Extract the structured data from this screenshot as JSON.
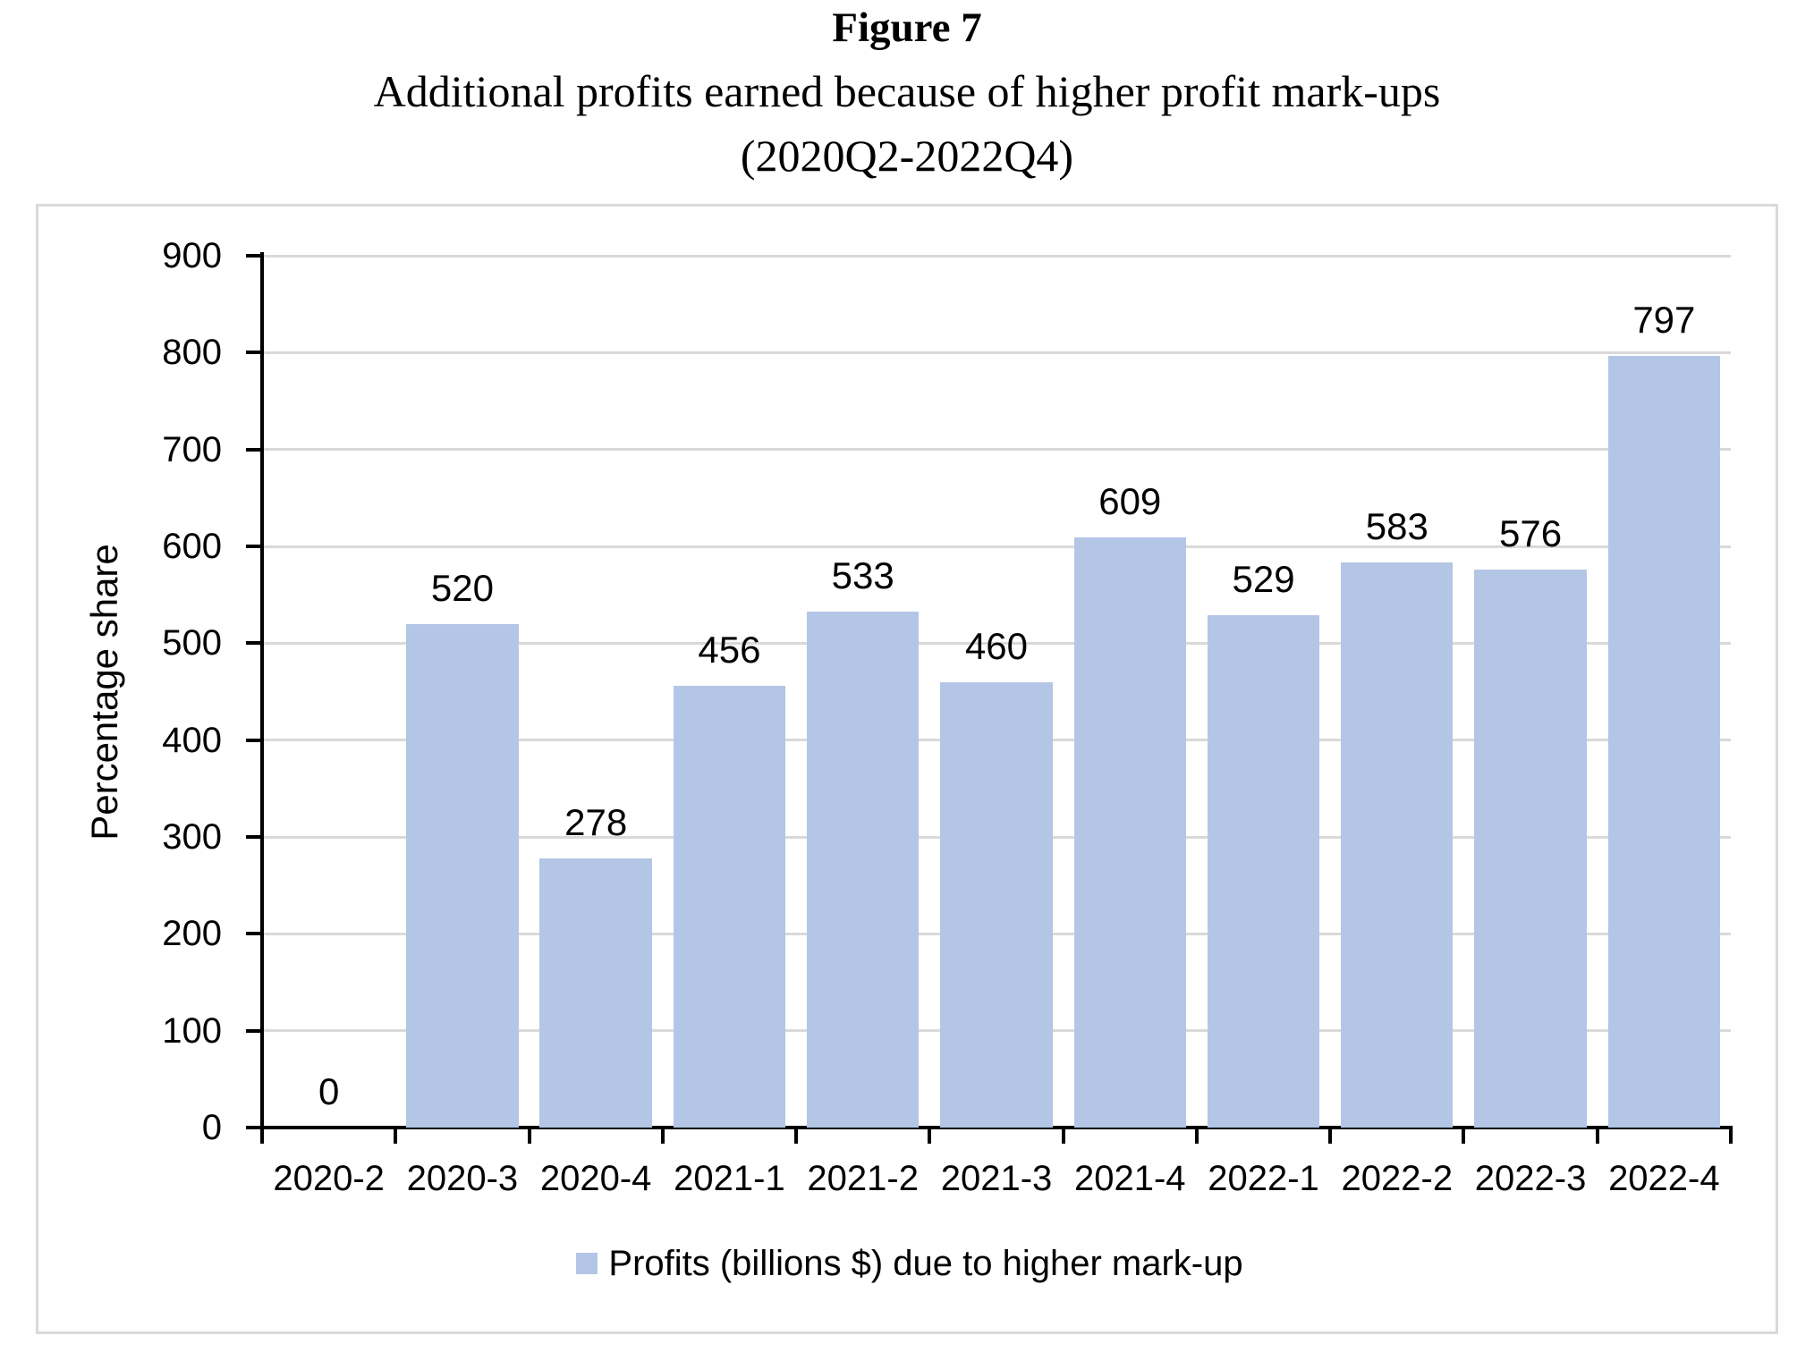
{
  "title": {
    "line1": "Figure 7",
    "line2": "Additional profits earned because of higher profit mark-ups",
    "line3": "(2020Q2-2022Q4)"
  },
  "chart_data": {
    "type": "bar",
    "title": "Figure 7 — Additional profits earned because of higher profit mark-ups (2020Q2-2022Q4)",
    "categories": [
      "2020-2",
      "2020-3",
      "2020-4",
      "2021-1",
      "2021-2",
      "2021-3",
      "2021-4",
      "2022-1",
      "2022-2",
      "2022-3",
      "2022-4"
    ],
    "values": [
      0,
      520,
      278,
      456,
      533,
      460,
      609,
      529,
      583,
      576,
      797
    ],
    "series_name": "Profits (billions $) due to higher mark-up",
    "xlabel": "",
    "ylabel": "Percentage share",
    "ylim": [
      0,
      900
    ],
    "ytick_step": 100,
    "grid": true,
    "data_labels": true,
    "legend": {
      "position": "bottom",
      "label": "Profits (billions $) due to higher mark-up"
    },
    "bar_color": "#B3C6E6",
    "gridline_color": "#D9D9D9",
    "axis_color": "#000000",
    "border_color": "#D9D9D9"
  }
}
